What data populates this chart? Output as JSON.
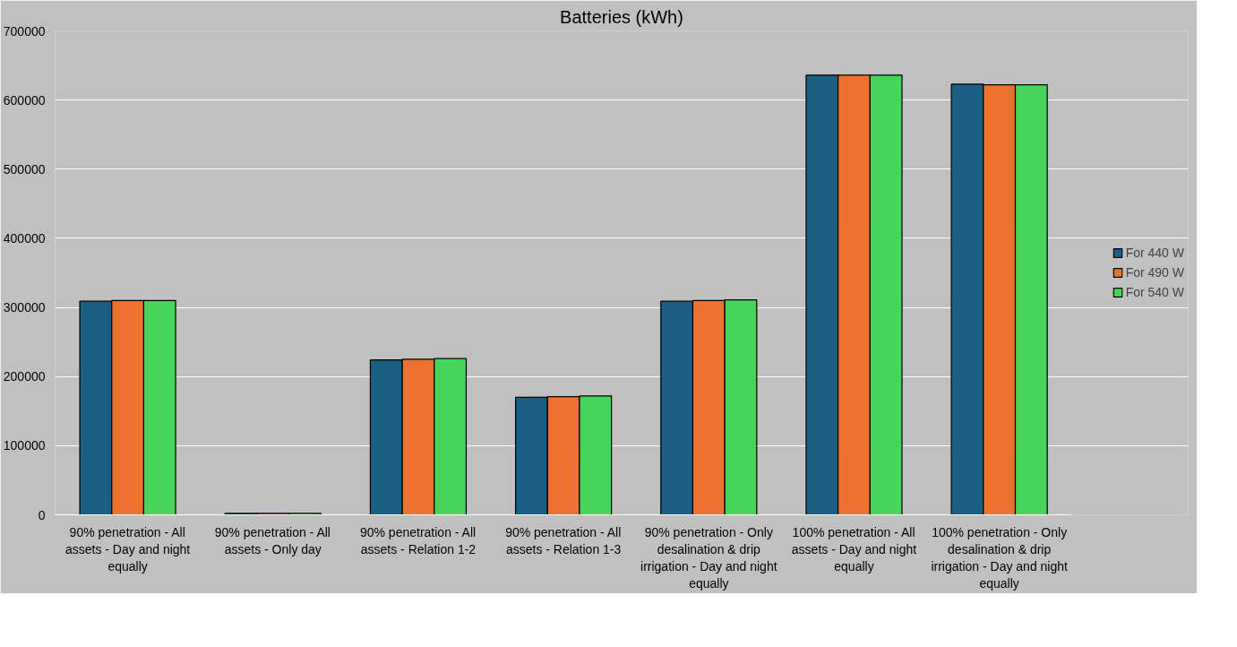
{
  "chart_data": {
    "type": "bar",
    "title": "Batteries (kWh)",
    "categories": [
      "90% penetration - All assets - Day and night equally",
      "90% penetration - All assets - Only day",
      "90% penetration - All assets - Relation 1-2",
      "90% penetration - All assets - Relation 1-3",
      "90% penetration - Only desalination & drip irrigation - Day and night equally",
      "100% penetration - All assets - Day and night equally",
      "100% penetration - Only desalination & drip irrigation - Day and night equally"
    ],
    "series": [
      {
        "name": "For 440 W",
        "color": "#1a5e82",
        "values": [
          309000,
          2000,
          224000,
          170000,
          309000,
          636000,
          623000
        ]
      },
      {
        "name": "For 490 W",
        "color": "#ed7230",
        "values": [
          310000,
          2000,
          225000,
          171000,
          310000,
          636000,
          622000
        ]
      },
      {
        "name": "For 540 W",
        "color": "#46d45a",
        "values": [
          310000,
          2000,
          226000,
          172000,
          311000,
          636000,
          622000
        ]
      }
    ],
    "ylim": [
      0,
      700000
    ],
    "yticks": [
      0,
      100000,
      200000,
      300000,
      400000,
      500000,
      600000,
      700000
    ],
    "grid": "y",
    "legend": "right"
  }
}
